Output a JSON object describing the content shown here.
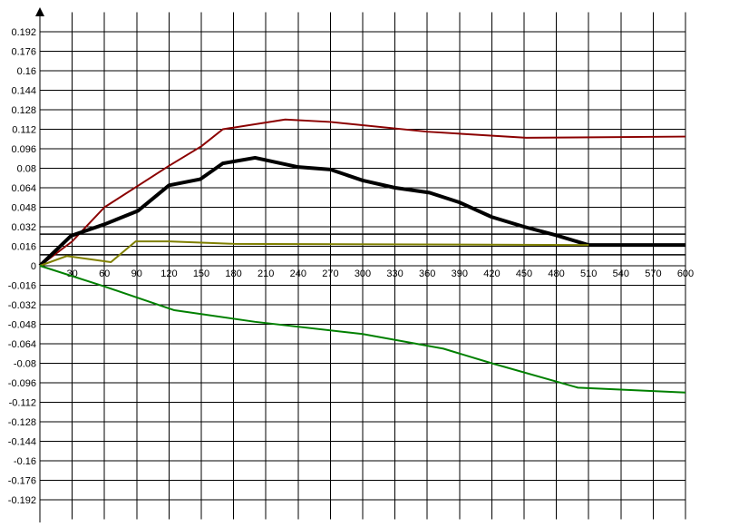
{
  "chart_data": {
    "type": "line",
    "xlim": [
      0,
      600
    ],
    "ylim": [
      -0.208,
      0.208
    ],
    "xticks": [
      30,
      60,
      90,
      120,
      150,
      180,
      210,
      240,
      270,
      300,
      330,
      360,
      390,
      420,
      450,
      480,
      510,
      540,
      570,
      600
    ],
    "yticks": [
      -0.192,
      -0.176,
      -0.16,
      -0.144,
      -0.128,
      -0.112,
      -0.096,
      -0.08,
      -0.064,
      -0.048,
      -0.032,
      -0.016,
      0,
      0.016,
      0.032,
      0.048,
      0.064,
      0.08,
      0.096,
      0.112,
      0.128,
      0.144,
      0.16,
      0.176,
      0.192
    ],
    "grid": true,
    "reference_lines": [
      0.026,
      0.009
    ],
    "series": [
      {
        "color": "#8b0000",
        "line_width": 2,
        "x": [
          0,
          30,
          60,
          90,
          120,
          150,
          170,
          228,
          270,
          360,
          452,
          600
        ],
        "values": [
          0,
          0.02,
          0.048,
          0.065,
          0.082,
          0.098,
          0.112,
          0.12,
          0.118,
          0.11,
          0.105,
          0.106
        ]
      },
      {
        "color": "#000000",
        "line_width": 4,
        "x": [
          0,
          29,
          60,
          91,
          120,
          149,
          170,
          200,
          240,
          270,
          300,
          330,
          362,
          390,
          420,
          450,
          480,
          510,
          600
        ],
        "values": [
          0,
          0.0246,
          0.034,
          0.045,
          0.066,
          0.071,
          0.084,
          0.0886,
          0.081,
          0.079,
          0.07,
          0.064,
          0.06,
          0.052,
          0.04,
          0.032,
          0.025,
          0.017,
          0.017
        ]
      },
      {
        "color": "#808000",
        "line_width": 2,
        "x": [
          0,
          25,
          66,
          89,
          120,
          150,
          180,
          510
        ],
        "values": [
          0,
          0.008,
          0.003,
          0.02,
          0.02,
          0.019,
          0.018,
          0.017
        ]
      },
      {
        "color": "#008000",
        "line_width": 2,
        "x": [
          0,
          60,
          125,
          200,
          300,
          375,
          420,
          500,
          600
        ],
        "values": [
          0,
          -0.017,
          -0.0365,
          -0.046,
          -0.056,
          -0.068,
          -0.08,
          -0.1,
          -0.104
        ]
      }
    ]
  }
}
